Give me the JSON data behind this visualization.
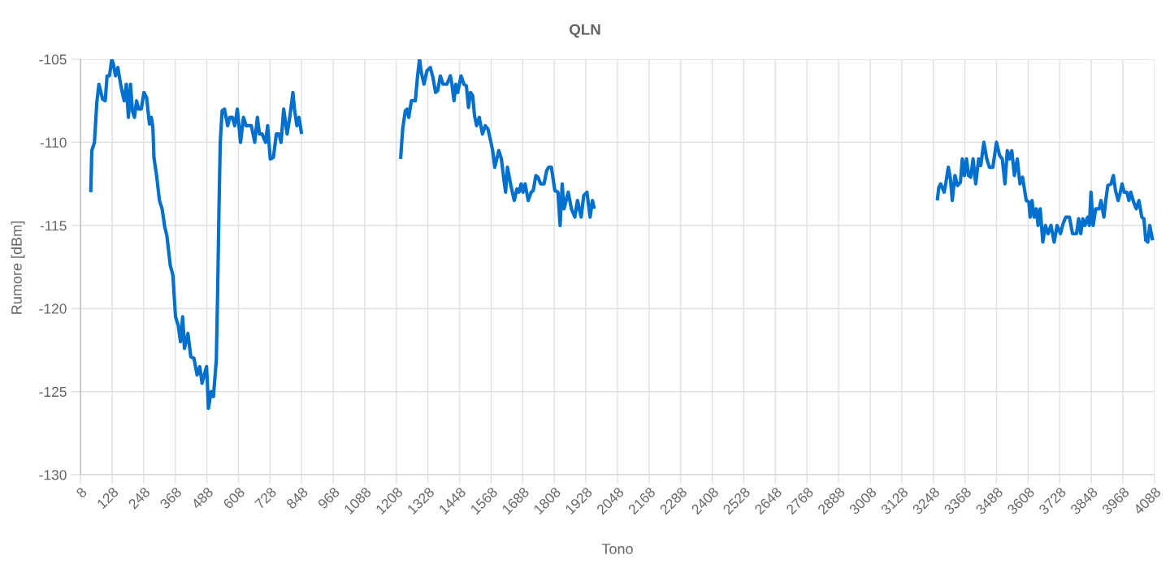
{
  "chart_data": {
    "type": "line",
    "title": "QLN",
    "xlabel": "Tono",
    "ylabel": "Rumore [dBm]",
    "xlim": [
      8,
      4088
    ],
    "xticks": [
      8,
      128,
      248,
      368,
      488,
      608,
      728,
      848,
      968,
      1088,
      1208,
      1328,
      1448,
      1568,
      1688,
      1808,
      1928,
      2048,
      2168,
      2288,
      2408,
      2528,
      2648,
      2768,
      2888,
      3008,
      3128,
      3248,
      3368,
      3488,
      3608,
      3728,
      3848,
      3968,
      4088
    ],
    "ylim": [
      -130,
      -105
    ],
    "yticks": [
      -130,
      -125,
      -120,
      -115,
      -110,
      -105
    ],
    "grid": true,
    "series": [
      {
        "color": "#0070d0",
        "x": [
          47,
          51,
          61,
          70,
          78,
          92,
          102,
          109,
          118,
          127,
          133,
          141,
          150,
          156,
          164,
          174,
          182,
          190,
          198,
          205,
          213,
          221,
          229,
          239,
          249,
          259,
          270,
          277,
          283,
          287,
          297,
          308,
          318,
          328,
          336,
          349,
          359,
          369,
          379,
          388,
          396,
          403,
          416,
          427,
          439,
          451,
          461,
          470,
          478,
          487,
          494,
          504,
          513,
          524,
          529,
          534,
          539,
          546,
          555,
          567,
          575,
          585,
          594,
          604,
          616,
          627,
          637,
          647,
          657,
          670,
          680,
          688,
          698,
          711,
          719,
          729,
          741,
          752,
          762,
          770,
          780,
          793,
          803,
          815,
          821,
          830,
          838,
          848,
          1088,
          1224,
          1232,
          1242,
          1249,
          1255,
          1265,
          1280,
          1288,
          1296,
          1303,
          1313,
          1324,
          1337,
          1347,
          1357,
          1365,
          1375,
          1385,
          1400,
          1413,
          1419,
          1427,
          1434,
          1441,
          1454,
          1464,
          1474,
          1482,
          1490,
          1498,
          1505,
          1513,
          1523,
          1535,
          1546,
          1556,
          1566,
          1574,
          1582,
          1597,
          1607,
          1617,
          1623,
          1630,
          1643,
          1656,
          1666,
          1674,
          1682,
          1689,
          1697,
          1709,
          1720,
          1728,
          1738,
          1746,
          1756,
          1769,
          1779,
          1787,
          1797,
          1810,
          1822,
          1830,
          1838,
          1845,
          1861,
          1873,
          1886,
          1896,
          1910,
          1920,
          1932,
          1944,
          1953,
          1960,
          2608,
          3263,
          3269,
          3276,
          3289,
          3296,
          3305,
          3313,
          3320,
          3330,
          3340,
          3351,
          3358,
          3366,
          3374,
          3382,
          3390,
          3399,
          3409,
          3420,
          3428,
          3440,
          3451,
          3461,
          3474,
          3488,
          3500,
          3510,
          3520,
          3529,
          3537,
          3546,
          3556,
          3567,
          3577,
          3587,
          3601,
          3611,
          3616,
          3623,
          3631,
          3639,
          3646,
          3654,
          3664,
          3674,
          3684,
          3695,
          3707,
          3718,
          3731,
          3741,
          3751,
          3765,
          3777,
          3792,
          3800,
          3808,
          3816,
          3824,
          3834,
          3841,
          3847,
          3855,
          3865,
          3878,
          3885,
          3896,
          3903,
          3911,
          3923,
          3932,
          3940,
          3950,
          3957,
          3965,
          3973,
          3983,
          3991,
          3998,
          4009,
          4019,
          4029,
          4040,
          4048,
          4055,
          4063,
          4070,
          4081
        ],
        "values": [
          -113,
          -110.5,
          -110,
          -107.6,
          -106.5,
          -107.4,
          -107.5,
          -106,
          -106,
          -105,
          -105.3,
          -106,
          -105.5,
          -106.1,
          -106.8,
          -107.5,
          -106.5,
          -108.5,
          -106.5,
          -108.1,
          -108.5,
          -107.5,
          -108,
          -108,
          -107,
          -107.3,
          -108.9,
          -108.5,
          -109.1,
          -110.9,
          -112,
          -113.5,
          -114,
          -115.1,
          -115.6,
          -117.4,
          -118,
          -120.5,
          -121,
          -122,
          -120.5,
          -122.4,
          -121.5,
          -122.9,
          -123,
          -124,
          -123.5,
          -124.5,
          -124,
          -123.5,
          -126,
          -125,
          -125.3,
          -123.1,
          -119,
          -114.1,
          -110,
          -108.1,
          -108,
          -109,
          -108.5,
          -108.5,
          -109,
          -108,
          -110,
          -108.5,
          -109,
          -109,
          -109,
          -110,
          -108.5,
          -109.5,
          -109.5,
          -110,
          -109,
          -111,
          -110.9,
          -109.5,
          -109.5,
          -110,
          -108,
          -109.5,
          -108.5,
          -107,
          -108,
          -109,
          -108.5,
          -109.5,
          null,
          -111,
          -109.2,
          -108.1,
          -108,
          -108.5,
          -107.5,
          -107.5,
          -106.1,
          -105,
          -105.8,
          -106.5,
          -105.7,
          -105.5,
          -106.1,
          -107,
          -106.9,
          -106,
          -106.5,
          -106.5,
          -106,
          -106.5,
          -107.5,
          -106.5,
          -107,
          -106,
          -106.5,
          -106.6,
          -107.9,
          -107,
          -107.2,
          -108.4,
          -109,
          -108.5,
          -109.5,
          -109,
          -109.2,
          -109.9,
          -110.5,
          -111.5,
          -110.5,
          -111,
          -112.3,
          -113,
          -111.5,
          -112.6,
          -113.5,
          -112.8,
          -113,
          -112.5,
          -113,
          -112.5,
          -113.5,
          -113,
          -112.9,
          -112,
          -112.1,
          -112.5,
          -112.5,
          -111.7,
          -111.5,
          -111.5,
          -112.9,
          -113,
          -115,
          -112.5,
          -114,
          -113,
          -114,
          -114.5,
          -113.5,
          -114.5,
          -113.2,
          -113,
          -114.5,
          -113.5,
          -114,
          null,
          -113.5,
          -112.7,
          -112.5,
          -113,
          -112.4,
          -111.5,
          -112.2,
          -113.5,
          -112,
          -112.6,
          -112.4,
          -111,
          -112,
          -111,
          -112,
          -112.1,
          -111,
          -112.5,
          -111,
          -111.4,
          -110,
          -111,
          -111.5,
          -111.5,
          -110,
          -110.8,
          -111,
          -112.5,
          -110.5,
          -111,
          -110.5,
          -112,
          -111,
          -112.5,
          -112.1,
          -113.5,
          -113.6,
          -114.5,
          -113.5,
          -114.5,
          -114,
          -115,
          -114,
          -116,
          -115,
          -115.5,
          -115,
          -116,
          -115,
          -115.5,
          -114.9,
          -114.5,
          -114.5,
          -115.5,
          -115.5,
          -114.6,
          -115.5,
          -114.6,
          -115,
          -114.5,
          -115,
          -113,
          -115,
          -114,
          -114,
          -113.5,
          -114.5,
          -113.5,
          -112.6,
          -112.5,
          -112,
          -112.9,
          -113.5,
          -113.1,
          -112.5,
          -113,
          -113,
          -113.5,
          -113,
          -113.6,
          -114,
          -113.5,
          -114.5,
          -114.6,
          -115.9,
          -116,
          -115,
          -115.9
        ]
      }
    ]
  }
}
